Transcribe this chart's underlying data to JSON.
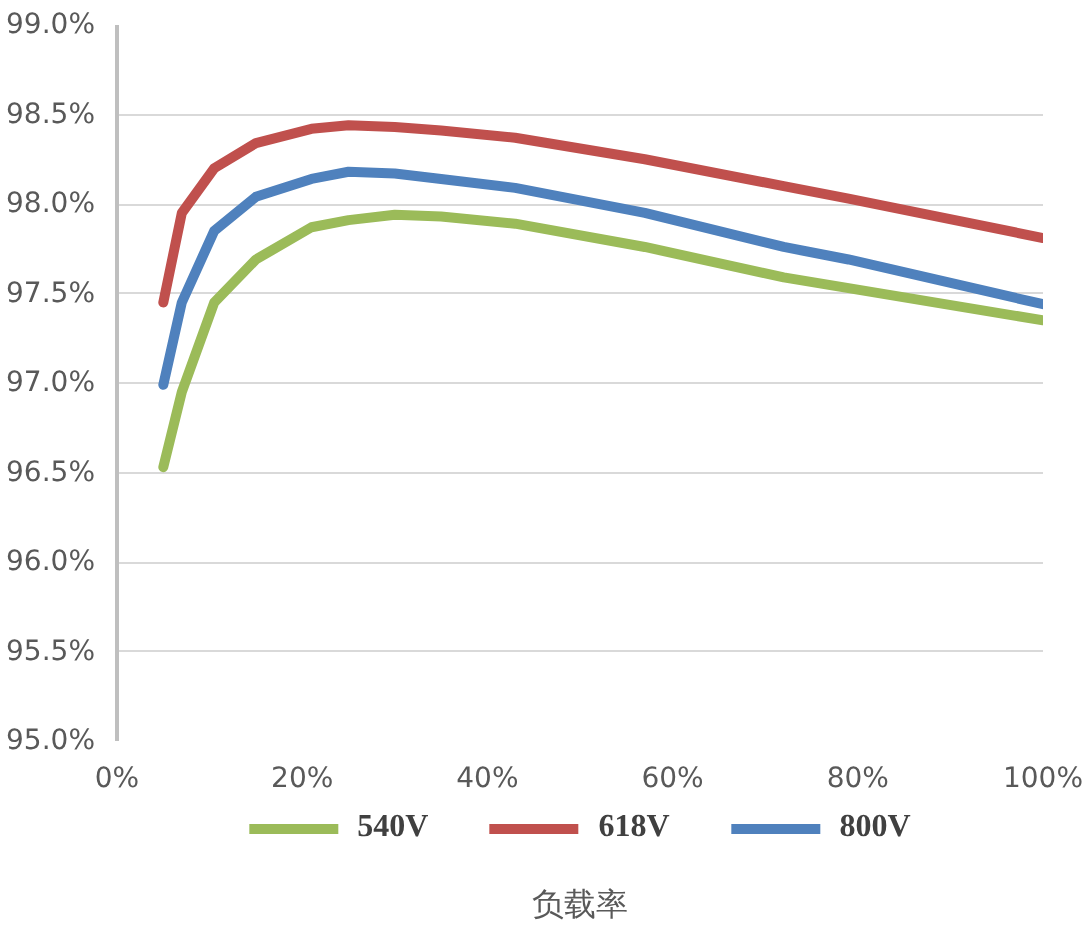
{
  "chart_data": {
    "type": "line",
    "xlabel": "负载率",
    "x": [
      5,
      7,
      10.5,
      15,
      21,
      25,
      30,
      35,
      43,
      57,
      72,
      79,
      100
    ],
    "series": [
      {
        "name": "540V",
        "color": "#9bbb59",
        "values": [
          96.53,
          96.95,
          97.45,
          97.69,
          97.87,
          97.91,
          97.94,
          97.93,
          97.89,
          97.76,
          97.59,
          97.53,
          97.35
        ]
      },
      {
        "name": "618V",
        "color": "#c0504d",
        "values": [
          97.45,
          97.95,
          98.2,
          98.34,
          98.42,
          98.44,
          98.43,
          98.41,
          98.37,
          98.25,
          98.1,
          98.03,
          97.81
        ]
      },
      {
        "name": "800V",
        "color": "#4f81bd",
        "values": [
          96.99,
          97.45,
          97.85,
          98.04,
          98.14,
          98.18,
          98.17,
          98.14,
          98.09,
          97.95,
          97.76,
          97.69,
          97.44
        ]
      }
    ],
    "xlim": [
      0,
      100
    ],
    "ylim": [
      95,
      99
    ],
    "xticks": [
      {
        "value": 0,
        "label": "0%"
      },
      {
        "value": 20,
        "label": "20%"
      },
      {
        "value": 40,
        "label": "40%"
      },
      {
        "value": 60,
        "label": "60%"
      },
      {
        "value": 80,
        "label": "80%"
      },
      {
        "value": 100,
        "label": "100%"
      }
    ],
    "yticks": [
      {
        "value": 95,
        "label": "95.0%"
      },
      {
        "value": 95.5,
        "label": "95.5%"
      },
      {
        "value": 96,
        "label": "96.0%"
      },
      {
        "value": 96.5,
        "label": "96.5%"
      },
      {
        "value": 97,
        "label": "97.0%"
      },
      {
        "value": 97.5,
        "label": "97.5%"
      },
      {
        "value": 98,
        "label": "98.0%"
      },
      {
        "value": 98.5,
        "label": "98.5%"
      },
      {
        "value": 99,
        "label": "99.0%"
      }
    ],
    "grid": "y",
    "legend": "bottom",
    "marker": "none",
    "line_style": "solid"
  }
}
